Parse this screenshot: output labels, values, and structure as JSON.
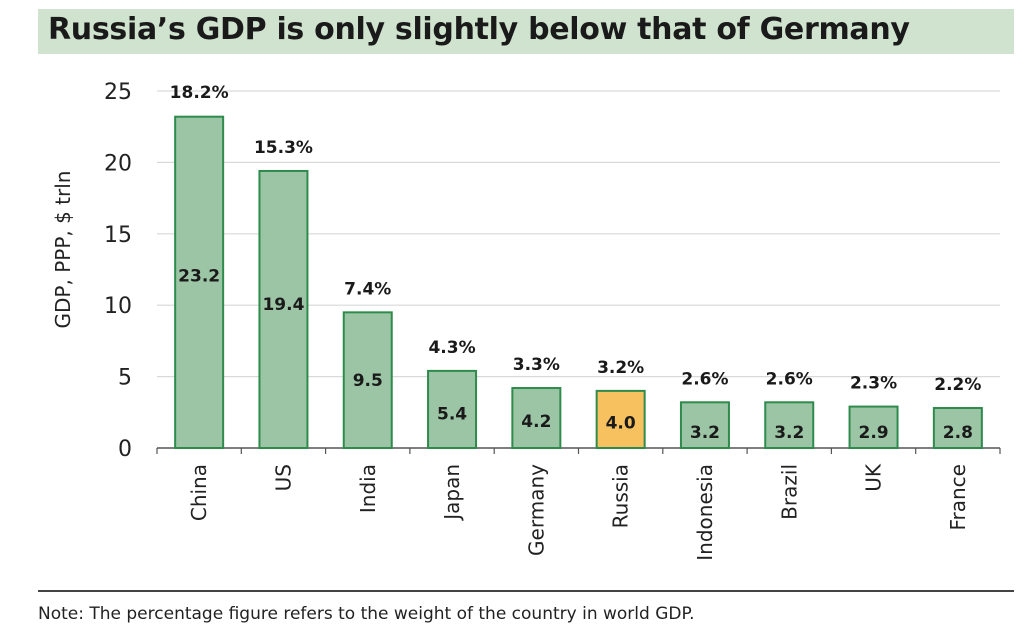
{
  "chart_data": {
    "type": "bar",
    "title": "Russia’s GDP is only slightly below that of Germany",
    "ylabel": "GDP, PPP,  $ trln",
    "xlabel": "",
    "ylim": [
      0,
      25
    ],
    "yticks": [
      0,
      5,
      10,
      15,
      20,
      25
    ],
    "grid": true,
    "categories": [
      "China",
      "US",
      "India",
      "Japan",
      "Germany",
      "Russia",
      "Indonesia",
      "Brazil",
      "UK",
      "France"
    ],
    "values": [
      23.2,
      19.4,
      9.5,
      5.4,
      4.2,
      4.0,
      3.2,
      3.2,
      2.9,
      2.8
    ],
    "value_labels": [
      "23.2",
      "19.4",
      "9.5",
      "5.4",
      "4.2",
      "4.0",
      "3.2",
      "3.2",
      "2.9",
      "2.8"
    ],
    "share_labels": [
      "18.2%",
      "15.3%",
      "7.4%",
      "4.3%",
      "3.3%",
      "3.2%",
      "2.6%",
      "2.6%",
      "2.3%",
      "2.2%"
    ],
    "highlight": "Russia",
    "colors": {
      "bar": "#9cc5a6",
      "bar_stroke": "#2e8b4b",
      "highlight": "#f7c15f",
      "title_bg": "#cfe3cf"
    }
  },
  "note": "Note: The percentage figure refers to the weight of the country in world GDP."
}
